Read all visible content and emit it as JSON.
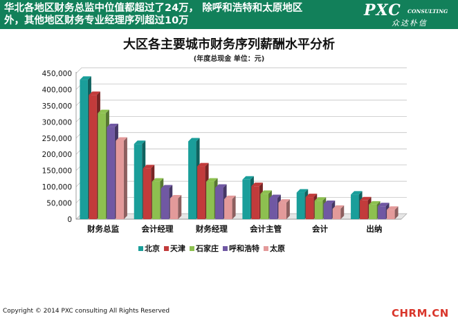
{
  "header": {
    "headline": "华北各地区财务总监中位值都超过了24万， 除呼和浩特和太原地区\n外，其他地区财务专业经理序列超过10万",
    "brand_name": "PXC",
    "brand_sub": "CONSULTING",
    "brand_cn": "众达朴信",
    "accent_color": "#12805a"
  },
  "chart_data": {
    "type": "bar",
    "title": "大区各主要城市财务序列薪酬水平分析",
    "subtitle": "(年度总现金 单位：元)",
    "xlabel": "",
    "ylabel": "",
    "categories": [
      "财务总监",
      "会计经理",
      "财务经理",
      "会计主管",
      "会计",
      "出纳"
    ],
    "ylim": [
      0,
      450000
    ],
    "yticks": [
      "0",
      "50,000",
      "100,000",
      "150,000",
      "200,000",
      "250,000",
      "300,000",
      "350,000",
      "400,000",
      "450,000"
    ],
    "series": [
      {
        "name": "北京",
        "color": "#1a9e9a",
        "values": [
          430000,
          232000,
          240000,
          122000,
          82000,
          76000
        ]
      },
      {
        "name": "天津",
        "color": "#c23b3b",
        "values": [
          383000,
          157000,
          163000,
          102000,
          68000,
          58000
        ]
      },
      {
        "name": "石家庄",
        "color": "#8dc050",
        "values": [
          327000,
          116000,
          116000,
          78000,
          57000,
          45000
        ]
      },
      {
        "name": "呼和浩特",
        "color": "#7058a3",
        "values": [
          284000,
          95000,
          97000,
          65000,
          47000,
          40000
        ]
      },
      {
        "name": "太原",
        "color": "#e39a9a",
        "values": [
          242000,
          64000,
          62000,
          51000,
          32000,
          29000
        ]
      }
    ],
    "grid": true,
    "legend_position": "bottom"
  },
  "footer": {
    "copyright": "Copyright © 2014 PXC consulting All Rights Reserved",
    "site_watermark": "CHRM.CN"
  }
}
